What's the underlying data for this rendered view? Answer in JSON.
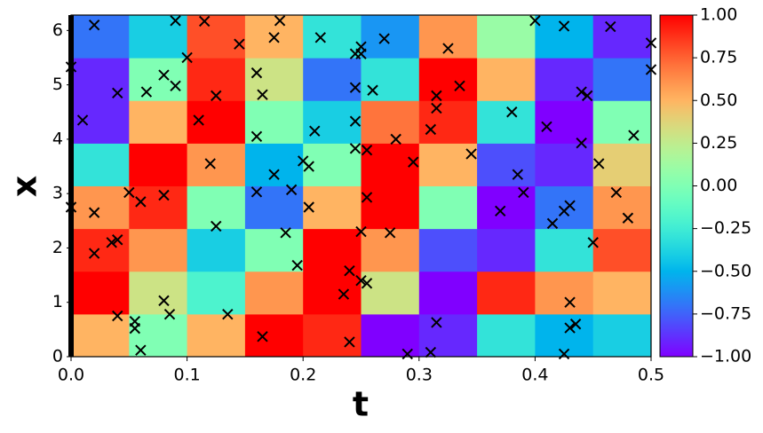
{
  "chart_data": {
    "type": "heatmap",
    "xlabel": "t",
    "ylabel": "x",
    "colormap": "rainbow",
    "marker_color": "#000000",
    "xlim": [
      0,
      0.5
    ],
    "ylim": [
      0,
      6.283
    ],
    "xticks": [
      {
        "value": 0,
        "label": "0.0"
      },
      {
        "value": 0.1,
        "label": "0.1"
      },
      {
        "value": 0.2,
        "label": "0.2"
      },
      {
        "value": 0.3,
        "label": "0.3"
      },
      {
        "value": 0.4,
        "label": "0.4"
      },
      {
        "value": 0.5,
        "label": "0.5"
      }
    ],
    "yticks": [
      0,
      1,
      2,
      3,
      4,
      5,
      6
    ],
    "clim": [
      -1,
      1
    ],
    "cticks": [
      {
        "value": 1,
        "label": "1.00"
      },
      {
        "value": 0.75,
        "label": "0.75"
      },
      {
        "value": 0.5,
        "label": "0.50"
      },
      {
        "value": 0.25,
        "label": "0.25"
      },
      {
        "value": 0,
        "label": "0.00"
      },
      {
        "value": -0.25,
        "label": "−0.25"
      },
      {
        "value": -0.5,
        "label": "−0.50"
      },
      {
        "value": -0.75,
        "label": "−0.75"
      },
      {
        "value": -1,
        "label": "−1.00"
      }
    ],
    "t_edges": [
      0,
      0.05,
      0.1,
      0.15,
      0.2,
      0.25,
      0.3,
      0.35,
      0.4,
      0.45,
      0.5
    ],
    "x_edges": [
      0,
      0.785,
      1.571,
      2.356,
      3.142,
      3.927,
      4.712,
      5.498,
      6.283
    ],
    "z": [
      [
        0.5,
        0,
        0.5,
        1,
        0.9,
        -1,
        -0.9,
        -0.3,
        -0.5,
        -0.4
      ],
      [
        1,
        0.3,
        -0.2,
        0.6,
        1,
        0.3,
        -1,
        0.9,
        0.6,
        0.5
      ],
      [
        0.9,
        0.6,
        -0.4,
        0,
        1,
        0.6,
        -0.8,
        -0.9,
        -0.3,
        0.8
      ],
      [
        0.6,
        0.9,
        0,
        -0.7,
        0.5,
        1,
        0,
        -1,
        -0.7,
        0.6
      ],
      [
        -0.3,
        1,
        0.6,
        -0.5,
        0,
        1,
        0.5,
        -0.8,
        -0.9,
        0.4
      ],
      [
        -0.9,
        0.5,
        1,
        0,
        -0.4,
        0.7,
        0.9,
        -0.3,
        -1,
        0
      ],
      [
        -0.9,
        0,
        0.9,
        0.3,
        -0.7,
        -0.3,
        1,
        0.5,
        -0.9,
        -0.7
      ],
      [
        -0.7,
        -0.4,
        0.8,
        0.5,
        -0.3,
        -0.6,
        0.6,
        0.1,
        -0.5,
        -0.9
      ]
    ],
    "points": {
      "t": [
        0,
        0.01,
        0,
        0.02,
        0.02,
        0.02,
        0.035,
        0.04,
        0.04,
        0.04,
        0.055,
        0.055,
        0.05,
        0.06,
        0.06,
        0.065,
        0.08,
        0.08,
        0.08,
        0.085,
        0.09,
        0.09,
        0.1,
        0.11,
        0.115,
        0.12,
        0.125,
        0.125,
        0.135,
        0.145,
        0.16,
        0.16,
        0.16,
        0.165,
        0.165,
        0.175,
        0.175,
        0.18,
        0.185,
        0.19,
        0.195,
        0.2,
        0.205,
        0.205,
        0.21,
        0.215,
        0.235,
        0.24,
        0.24,
        0.245,
        0.25,
        0.25,
        0.245,
        0.245,
        0.245,
        0.25,
        0.25,
        0.255,
        0.255,
        0.255,
        0.26,
        0.27,
        0.275,
        0.28,
        0.29,
        0.295,
        0.31,
        0.31,
        0.315,
        0.315,
        0.315,
        0.325,
        0.335,
        0.345,
        0.37,
        0.38,
        0.385,
        0.39,
        0.4,
        0.41,
        0.415,
        0.425,
        0.425,
        0.425,
        0.43,
        0.43,
        0.43,
        0.435,
        0.44,
        0.44,
        0.445,
        0.45,
        0.455,
        0.465,
        0.47,
        0.48,
        0.485,
        0.5,
        0.5
      ],
      "x": [
        5.33,
        4.35,
        2.75,
        6.1,
        2.65,
        1.9,
        2.1,
        2.15,
        4.85,
        0.75,
        0.65,
        0.52,
        3.02,
        2.85,
        0.12,
        4.87,
        5.18,
        2.97,
        1.03,
        0.78,
        6.18,
        4.98,
        5.5,
        4.35,
        6.17,
        3.55,
        4.8,
        2.4,
        0.78,
        5.75,
        5.22,
        4.05,
        3.03,
        4.82,
        0.37,
        5.87,
        3.35,
        6.18,
        2.28,
        3.07,
        1.68,
        3.6,
        3.5,
        2.75,
        4.15,
        5.87,
        1.15,
        1.58,
        0.27,
        5.57,
        5.7,
        5.57,
        4.95,
        4.33,
        3.83,
        2.3,
        1.4,
        1.35,
        3.8,
        2.93,
        4.9,
        5.85,
        2.28,
        4,
        0.05,
        3.58,
        0.08,
        4.18,
        4.8,
        4.57,
        0.63,
        5.67,
        4.98,
        3.73,
        2.68,
        4.5,
        3.35,
        3.02,
        6.18,
        4.23,
        2.45,
        6.08,
        2.68,
        0.05,
        2.78,
        1,
        0.53,
        0.6,
        4.87,
        3.93,
        4.8,
        2.1,
        3.55,
        6.07,
        3.02,
        2.55,
        4.07,
        5.77,
        5.28
      ]
    }
  }
}
